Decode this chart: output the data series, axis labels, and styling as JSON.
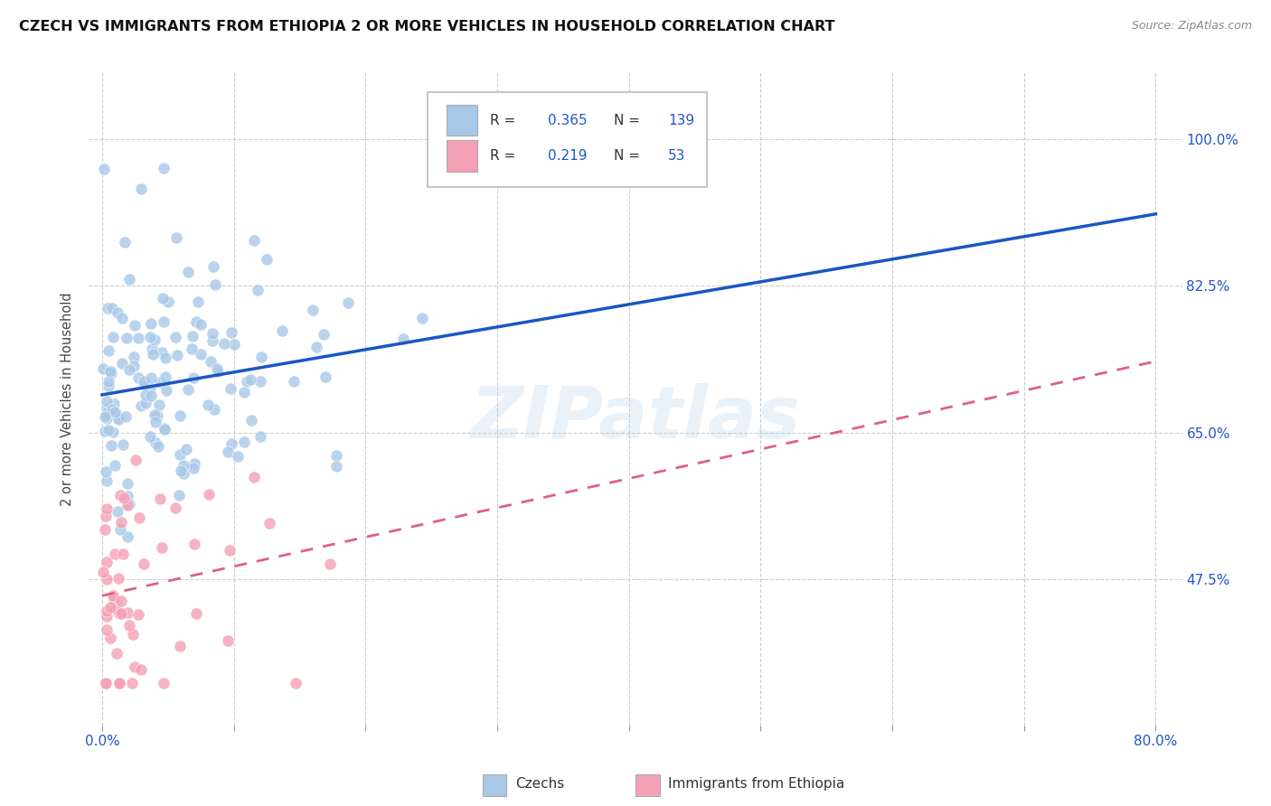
{
  "title": "CZECH VS IMMIGRANTS FROM ETHIOPIA 2 OR MORE VEHICLES IN HOUSEHOLD CORRELATION CHART",
  "source": "Source: ZipAtlas.com",
  "ylabel": "2 or more Vehicles in Household",
  "x_tick_positions": [
    0.0,
    0.1,
    0.2,
    0.3,
    0.4,
    0.5,
    0.6,
    0.7,
    0.8
  ],
  "x_tick_labels_ends": {
    "0.0": "0.0%",
    "0.8": "80.0%"
  },
  "y_tick_vals": [
    0.475,
    0.65,
    0.825,
    1.0
  ],
  "y_tick_labels": [
    "47.5%",
    "65.0%",
    "82.5%",
    "100.0%"
  ],
  "xlim": [
    -0.01,
    0.82
  ],
  "ylim": [
    0.3,
    1.08
  ],
  "r_czech": 0.365,
  "n_czech": 139,
  "r_ethiopia": 0.219,
  "n_ethiopia": 53,
  "color_czech": "#a8c8e8",
  "color_ethiopia": "#f4a0b5",
  "trendline_czech_color": "#1a56c4",
  "trendline_ethiopia_color": "#e06080",
  "watermark": "ZIPatlas",
  "background_color": "#ffffff",
  "czech_intercept": 0.695,
  "czech_slope": 0.27,
  "ethiopia_intercept": 0.455,
  "ethiopia_slope": 0.35,
  "legend_r_n_color": "#2255cc",
  "legend_text_color": "#333333",
  "right_axis_color": "#2255cc",
  "title_fontsize": 11.5,
  "source_fontsize": 9,
  "tick_fontsize": 11
}
